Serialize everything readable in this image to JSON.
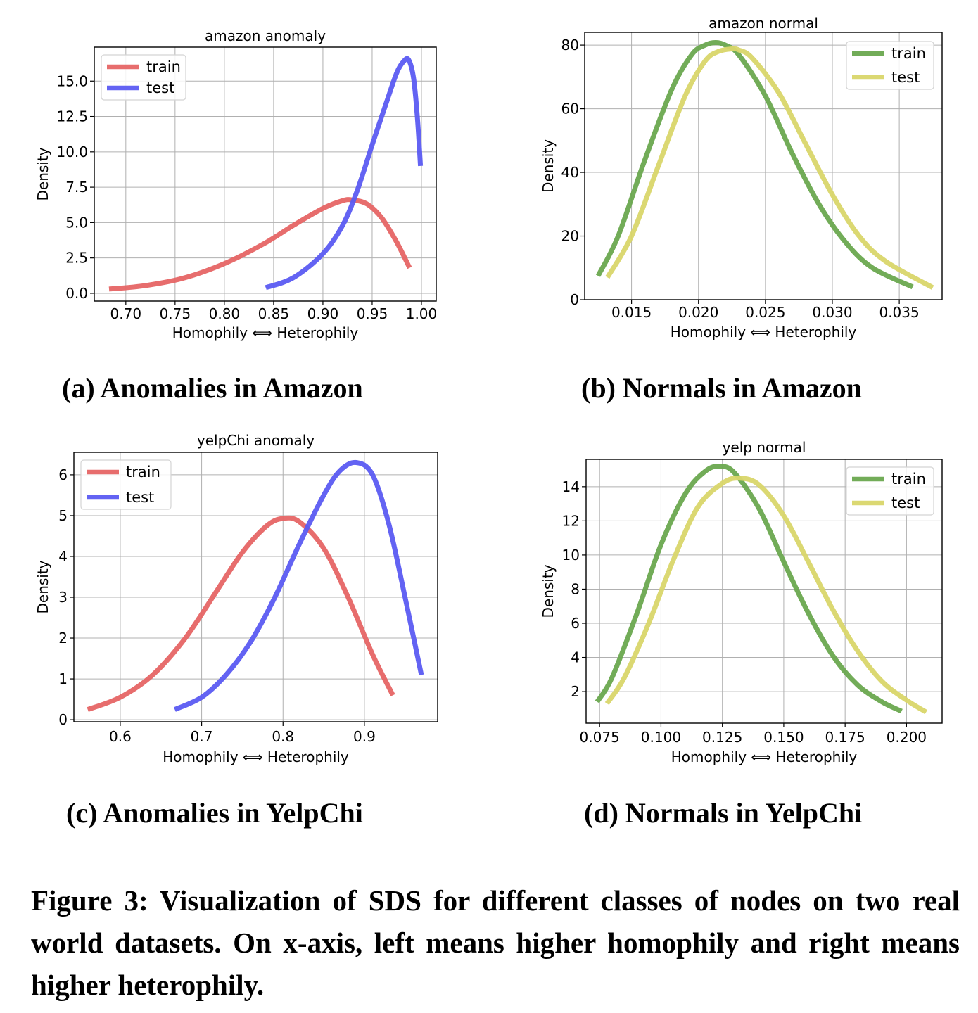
{
  "chart_data": [
    {
      "id": "a",
      "type": "line",
      "title": "amazon anomaly",
      "xlabel": "Homophily ⟺ Heterophily",
      "ylabel": "Density",
      "xlim": [
        0.668,
        1.015
      ],
      "ylim": [
        -0.55,
        17.4
      ],
      "xticks": [
        0.7,
        0.75,
        0.8,
        0.85,
        0.9,
        0.95,
        1.0
      ],
      "xtick_labels": [
        "0.70",
        "0.75",
        "0.80",
        "0.85",
        "0.90",
        "0.95",
        "1.00"
      ],
      "yticks": [
        0.0,
        2.5,
        5.0,
        7.5,
        10.0,
        12.5,
        15.0
      ],
      "ytick_labels": [
        "0.0",
        "2.5",
        "5.0",
        "7.5",
        "10.0",
        "12.5",
        "15.0"
      ],
      "legend": "top-left",
      "series": [
        {
          "name": "train",
          "color": "#e66565",
          "x": [
            0.683,
            0.72,
            0.76,
            0.8,
            0.84,
            0.87,
            0.9,
            0.92,
            0.93,
            0.945,
            0.96,
            0.975,
            0.988
          ],
          "y": [
            0.3,
            0.55,
            1.1,
            2.1,
            3.5,
            4.8,
            6.0,
            6.55,
            6.6,
            6.3,
            5.3,
            3.6,
            1.8
          ]
        },
        {
          "name": "test",
          "color": "#5b5bf2",
          "x": [
            0.842,
            0.87,
            0.9,
            0.92,
            0.935,
            0.95,
            0.965,
            0.975,
            0.982,
            0.987,
            0.992,
            0.996,
            0.999
          ],
          "y": [
            0.4,
            1.1,
            2.8,
            4.8,
            7.3,
            10.5,
            13.6,
            15.6,
            16.4,
            16.5,
            15.2,
            12.3,
            9.0
          ]
        }
      ]
    },
    {
      "id": "b",
      "type": "line",
      "title": "amazon normal",
      "xlabel": "Homophily ⟺ Heterophily",
      "ylabel": "Density",
      "xlim": [
        0.0115,
        0.0382
      ],
      "ylim": [
        0,
        84
      ],
      "xticks": [
        0.015,
        0.02,
        0.025,
        0.03,
        0.035
      ],
      "xtick_labels": [
        "0.015",
        "0.020",
        "0.025",
        "0.030",
        "0.035"
      ],
      "yticks": [
        0,
        20,
        40,
        60,
        80
      ],
      "ytick_labels": [
        "0",
        "20",
        "40",
        "60",
        "80"
      ],
      "legend": "top-right",
      "series": [
        {
          "name": "train",
          "color": "#6aa84f",
          "x": [
            0.0125,
            0.014,
            0.016,
            0.018,
            0.0195,
            0.0205,
            0.0213,
            0.022,
            0.023,
            0.025,
            0.027,
            0.029,
            0.031,
            0.033,
            0.036
          ],
          "y": [
            7.5,
            20,
            44,
            66,
            77,
            80,
            80.8,
            80,
            77,
            64,
            46,
            30,
            18,
            10,
            4
          ]
        },
        {
          "name": "test",
          "color": "#d9d66a",
          "x": [
            0.0132,
            0.015,
            0.017,
            0.019,
            0.0205,
            0.0215,
            0.0225,
            0.023,
            0.024,
            0.026,
            0.028,
            0.03,
            0.032,
            0.034,
            0.0375
          ],
          "y": [
            7,
            20,
            42,
            64,
            75,
            78,
            78.8,
            78.5,
            76,
            65,
            49,
            33,
            20,
            12,
            3.8
          ]
        }
      ]
    },
    {
      "id": "c",
      "type": "line",
      "title": "yelpChi anomaly",
      "xlabel": "Homophily ⟺ Heterophily",
      "ylabel": "Density",
      "xlim": [
        0.543,
        0.99
      ],
      "ylim": [
        -0.05,
        6.55
      ],
      "xticks": [
        0.6,
        0.7,
        0.8,
        0.9
      ],
      "xtick_labels": [
        "0.6",
        "0.7",
        "0.8",
        "0.9"
      ],
      "yticks": [
        0,
        1,
        2,
        3,
        4,
        5,
        6
      ],
      "ytick_labels": [
        "0",
        "1",
        "2",
        "3",
        "4",
        "5",
        "6"
      ],
      "legend": "top-left",
      "series": [
        {
          "name": "train",
          "color": "#e66565",
          "x": [
            0.56,
            0.6,
            0.64,
            0.68,
            0.72,
            0.75,
            0.78,
            0.8,
            0.82,
            0.85,
            0.88,
            0.91,
            0.935
          ],
          "y": [
            0.25,
            0.55,
            1.1,
            2.0,
            3.2,
            4.1,
            4.75,
            4.93,
            4.85,
            4.2,
            3.0,
            1.6,
            0.6
          ]
        },
        {
          "name": "test",
          "color": "#5b5bf2",
          "x": [
            0.667,
            0.7,
            0.73,
            0.76,
            0.79,
            0.82,
            0.85,
            0.87,
            0.89,
            0.91,
            0.93,
            0.95,
            0.97
          ],
          "y": [
            0.25,
            0.55,
            1.1,
            1.9,
            3.0,
            4.3,
            5.5,
            6.1,
            6.3,
            6.0,
            4.8,
            3.0,
            1.1
          ]
        }
      ]
    },
    {
      "id": "d",
      "type": "line",
      "title": "yelp normal",
      "xlabel": "Homophily ⟺ Heterophily",
      "ylabel": "Density",
      "xlim": [
        0.0695,
        0.2145
      ],
      "ylim": [
        0.15,
        15.6
      ],
      "xticks": [
        0.075,
        0.1,
        0.125,
        0.15,
        0.175,
        0.2
      ],
      "xtick_labels": [
        "0.075",
        "0.100",
        "0.125",
        "0.150",
        "0.175",
        "0.200"
      ],
      "yticks": [
        2,
        4,
        6,
        8,
        10,
        12,
        14
      ],
      "ytick_labels": [
        "2",
        "4",
        "6",
        "8",
        "10",
        "12",
        "14"
      ],
      "legend": "top-right",
      "series": [
        {
          "name": "train",
          "color": "#6aa84f",
          "x": [
            0.074,
            0.08,
            0.09,
            0.1,
            0.11,
            0.118,
            0.124,
            0.13,
            0.14,
            0.15,
            0.16,
            0.17,
            0.18,
            0.19,
            0.198
          ],
          "y": [
            1.4,
            2.8,
            6.5,
            10.6,
            13.6,
            14.9,
            15.2,
            14.8,
            12.7,
            9.6,
            6.6,
            4.1,
            2.4,
            1.4,
            0.85
          ]
        },
        {
          "name": "test",
          "color": "#d9d66a",
          "x": [
            0.078,
            0.085,
            0.095,
            0.105,
            0.115,
            0.125,
            0.132,
            0.14,
            0.15,
            0.16,
            0.17,
            0.18,
            0.19,
            0.2,
            0.208
          ],
          "y": [
            1.3,
            2.8,
            6.0,
            9.7,
            12.8,
            14.2,
            14.5,
            14.1,
            12.3,
            9.6,
            6.8,
            4.4,
            2.6,
            1.5,
            0.8
          ]
        }
      ]
    }
  ],
  "captions": {
    "a": "(a) Anomalies in Amazon",
    "b": "(b) Normals in Amazon",
    "c": "(c) Anomalies in YelpChi",
    "d": "(d) Normals in YelpChi"
  },
  "figure_caption": "Figure 3: Visualization of SDS for different classes of nodes on two real world datasets. On x-axis, left means higher ho­mophily and right means higher heterophily."
}
